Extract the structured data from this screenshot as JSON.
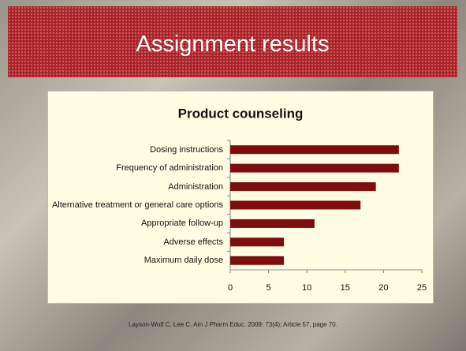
{
  "slide": {
    "title": "Assignment results",
    "citation": "Layson-Wolf C, Lee C. Am J Pharm Educ. 2009: 73(4); Article 57, page 70."
  },
  "chart_data": {
    "type": "bar",
    "orientation": "horizontal",
    "title": "Product counseling",
    "categories": [
      "Dosing instructions",
      "Frequency of administration",
      "Administration",
      "Alternative treatment or general care options",
      "Appropriate follow-up",
      "Adverse effects",
      "Maximum daily dose"
    ],
    "values": [
      22,
      22,
      19,
      17,
      11,
      7,
      7
    ],
    "color": "#800d0d",
    "xlim": [
      0,
      25
    ],
    "xticks": [
      0,
      5,
      10,
      15,
      20,
      25
    ],
    "grid": false
  }
}
